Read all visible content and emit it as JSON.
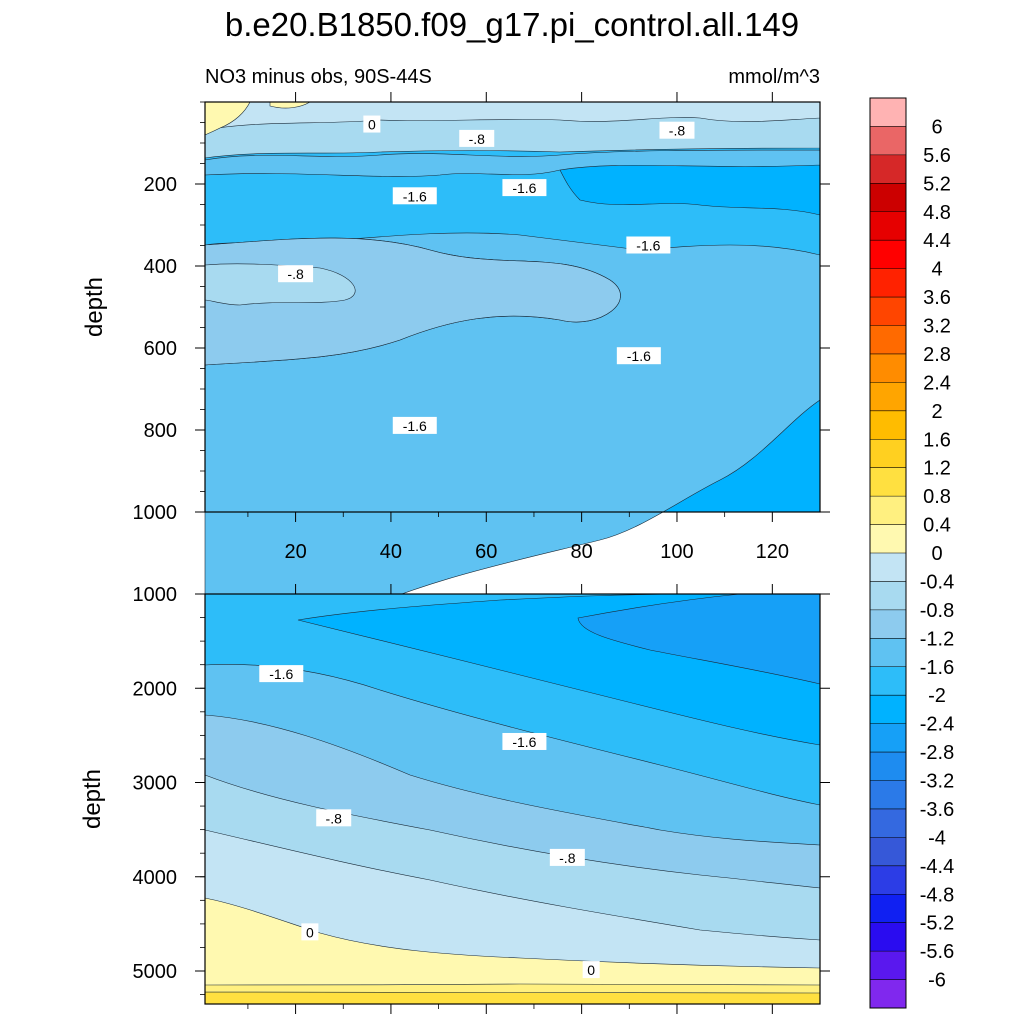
{
  "chart_data": {
    "type": "contour",
    "title": "b.e20.B1850.f09_g17.pi_control.all.149",
    "subtitle_left": "NO3 minus obs, 90S-44S",
    "subtitle_right": "mmol/m^3",
    "units": "mmol/m^3",
    "panels": [
      {
        "name": "upper",
        "ylabel": "depth",
        "xlim": [
          1,
          130
        ],
        "ylim": [
          0,
          1000
        ],
        "y_reversed": true,
        "x_ticks": [
          "20",
          "40",
          "60",
          "80",
          "100",
          "120"
        ],
        "x_tick_values": [
          20,
          40,
          60,
          80,
          100,
          120
        ],
        "y_ticks": [
          "200",
          "400",
          "600",
          "800",
          "1000"
        ],
        "y_tick_values": [
          200,
          400,
          600,
          800,
          1000
        ],
        "contour_labels": [
          {
            "text": "0",
            "x": 36,
            "y": 55
          },
          {
            "text": "-.8",
            "x": 58,
            "y": 90
          },
          {
            "text": "-.8",
            "x": 100,
            "y": 70
          },
          {
            "text": "-1.6",
            "x": 68,
            "y": 210
          },
          {
            "text": "-1.6",
            "x": 45,
            "y": 230
          },
          {
            "text": "-1.6",
            "x": 94,
            "y": 350
          },
          {
            "text": "-.8",
            "x": 20,
            "y": 420
          },
          {
            "text": "-1.6",
            "x": 92,
            "y": 620
          },
          {
            "text": "-1.6",
            "x": 45,
            "y": 790
          }
        ]
      },
      {
        "name": "lower",
        "ylabel": "depth",
        "xlim": [
          1,
          130
        ],
        "ylim": [
          1000,
          5350
        ],
        "y_reversed": true,
        "x_ticks": [],
        "x_tick_values": [
          20,
          40,
          60,
          80,
          100,
          120
        ],
        "y_ticks": [
          "1000",
          "2000",
          "3000",
          "4000",
          "5000"
        ],
        "y_tick_values": [
          1000,
          2000,
          3000,
          4000,
          5000
        ],
        "contour_labels": [
          {
            "text": "-1.6",
            "x": 17,
            "y": 1850
          },
          {
            "text": "-1.6",
            "x": 68,
            "y": 2570
          },
          {
            "text": "-.8",
            "x": 28,
            "y": 3380
          },
          {
            "text": "-.8",
            "x": 77,
            "y": 3800
          },
          {
            "text": "0",
            "x": 23,
            "y": 4590
          },
          {
            "text": "0",
            "x": 82,
            "y": 4990
          }
        ]
      }
    ],
    "colorbar": {
      "labels": [
        "6",
        "5.6",
        "5.2",
        "4.8",
        "4.4",
        "4",
        "3.6",
        "3.2",
        "2.8",
        "2.4",
        "2",
        "1.6",
        "1.2",
        "0.8",
        "0.4",
        "0",
        "-0.4",
        "-0.8",
        "-1.2",
        "-1.6",
        "-2",
        "-2.4",
        "-2.8",
        "-3.2",
        "-3.6",
        "-4",
        "-4.4",
        "-4.8",
        "-5.2",
        "-5.6",
        "-6"
      ],
      "colors": [
        "#ffb3b3",
        "#ea6666",
        "#d62828",
        "#cc0000",
        "#e60000",
        "#ff0000",
        "#ff2200",
        "#ff4500",
        "#ff6a00",
        "#ff8c00",
        "#ffa500",
        "#ffbc00",
        "#ffd020",
        "#ffe040",
        "#fff080",
        "#fff9b0",
        "#c3e4f4",
        "#a8daf0",
        "#8dcbee",
        "#5fc2f2",
        "#2dbdf9",
        "#00b2ff",
        "#16a0f7",
        "#1e8cf0",
        "#2b7ae8",
        "#3469e0",
        "#3658d8",
        "#2c3de6",
        "#1020f2",
        "#2a0cf0",
        "#5a18ee",
        "#8028ee"
      ]
    }
  }
}
